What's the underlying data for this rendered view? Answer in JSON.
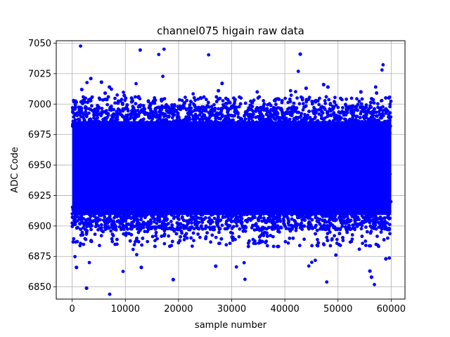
{
  "chart_data": {
    "type": "scatter",
    "title": "channel075 higain raw data",
    "xlabel": "sample number",
    "ylabel": "ADC Code",
    "xlim": [
      -3000,
      62600
    ],
    "ylim": [
      6840,
      7052
    ],
    "xticks": [
      0,
      10000,
      20000,
      30000,
      40000,
      50000,
      60000
    ],
    "yticks": [
      6850,
      6875,
      6900,
      6925,
      6950,
      6975,
      7000,
      7025,
      7050
    ],
    "grid": true,
    "marker_color": "#0000ff",
    "n_samples": 60000,
    "core_band": {
      "low": 6897,
      "high": 6998
    },
    "outliers": {
      "x": [
        2700,
        42900,
        3500,
        5500,
        7000,
        28200,
        47300,
        48100,
        19000,
        1800,
        6200,
        9800,
        12500,
        27500,
        44000,
        54300,
        56300,
        800,
        27000,
        56000,
        13000,
        59000
      ],
      "y": [
        6849,
        7041,
        7021,
        7018,
        7014,
        7017,
        7016,
        7014,
        6856,
        7012,
        7009,
        7007,
        7006,
        7011,
        7013,
        7010,
        6858,
        6866,
        6867,
        6863,
        6866,
        6873
      ]
    }
  }
}
